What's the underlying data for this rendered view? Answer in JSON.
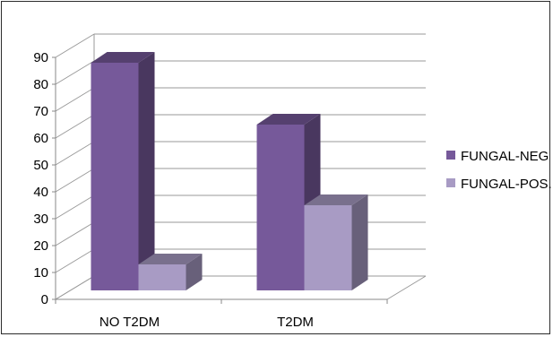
{
  "chart_data": {
    "type": "bar",
    "style": "3d-clustered-column",
    "categories": [
      "NO T2DM",
      "T2DM"
    ],
    "series": [
      {
        "name": "FUNGAL-NEG",
        "values": [
          88,
          65
        ],
        "color": "#76599a"
      },
      {
        "name": "FUNGAL-POS.",
        "values": [
          13,
          35
        ],
        "color": "#a89bc4"
      }
    ],
    "y_ticks": [
      "0",
      "10",
      "20",
      "30",
      "40",
      "50",
      "60",
      "70",
      "80",
      "90"
    ],
    "ylim": [
      0,
      90
    ],
    "grid": true,
    "legend_position": "right"
  }
}
